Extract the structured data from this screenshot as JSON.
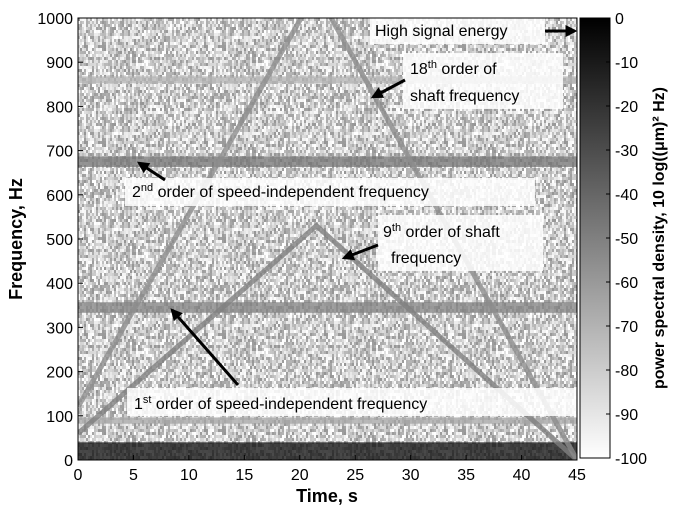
{
  "chart_data": {
    "type": "spectrogram",
    "xlabel": "Time, s",
    "ylabel": "Frequency, Hz",
    "colorbar_label": "power spectral density, 10 log((μm)² Hz)",
    "xlim": [
      0,
      45
    ],
    "xticks": [
      0,
      5,
      10,
      15,
      20,
      25,
      30,
      35,
      40,
      45
    ],
    "ylim": [
      0,
      1000
    ],
    "yticks": [
      0,
      100,
      200,
      300,
      400,
      500,
      600,
      700,
      800,
      900,
      1000
    ],
    "clim": [
      -100,
      0
    ],
    "cticks": [
      0,
      -10,
      -20,
      -30,
      -40,
      -50,
      -60,
      -70,
      -80,
      -90,
      -100
    ],
    "background_level": -80,
    "bands": [
      {
        "range": [
          0,
          40
        ],
        "level": -5
      },
      {
        "range": [
          82,
          96
        ],
        "level": -65
      },
      {
        "range": [
          333,
          357
        ],
        "level": -50
      },
      {
        "range": [
          663,
          687
        ],
        "level": -45
      },
      {
        "range": [
          852,
          868
        ],
        "level": -70
      }
    ],
    "ridges": [
      {
        "x": [
          0,
          21.5,
          45
        ],
        "y": [
          60,
          530,
          0
        ],
        "level": -50
      },
      {
        "x": [
          0,
          21.5,
          45
        ],
        "y": [
          120,
          1060,
          0
        ],
        "level": -55
      }
    ],
    "annotations": [
      {
        "ordinal": "",
        "suffix": "",
        "lines": [
          "High signal energy"
        ]
      },
      {
        "ordinal": "18",
        "suffix": "th",
        "lines": [
          " order of",
          "shaft frequency"
        ]
      },
      {
        "ordinal": "2",
        "suffix": "nd",
        "lines": [
          " order of speed-independent frequency"
        ]
      },
      {
        "ordinal": "9",
        "suffix": "th",
        "lines": [
          " order of shaft",
          "frequency"
        ]
      },
      {
        "ordinal": "1",
        "suffix": "st",
        "lines": [
          " order of speed-independent frequency"
        ]
      }
    ]
  }
}
